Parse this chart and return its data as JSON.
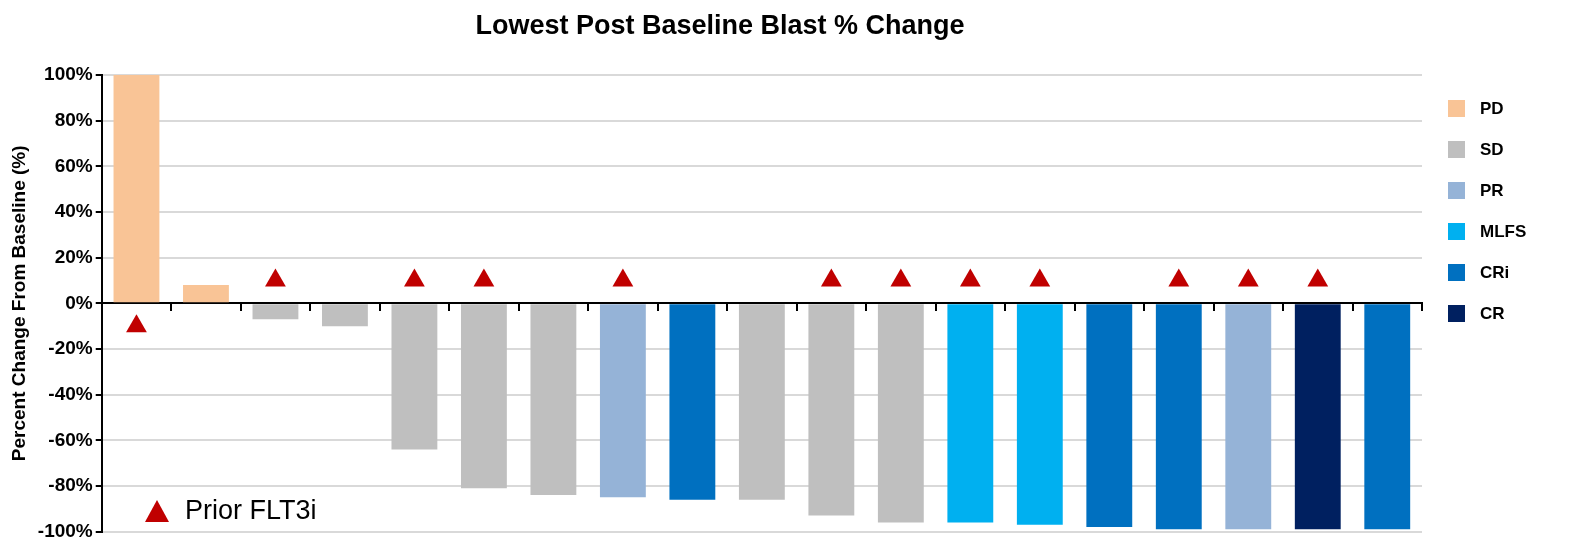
{
  "chart_data": {
    "type": "bar",
    "title": "Lowest Post Baseline Blast % Change",
    "ylabel": "Percent Change From Baseline (%)",
    "categories": [
      null,
      null,
      null,
      null,
      null,
      null,
      null,
      null,
      null,
      null,
      null,
      null,
      null,
      null,
      null,
      null,
      null,
      null,
      null
    ],
    "stacked": true,
    "grid": "y",
    "legend": "right",
    "marker": "triangle",
    "ylim": [
      -100,
      100
    ],
    "yticks": [
      {
        "value": -100,
        "label": "-100%"
      },
      {
        "value": -80,
        "label": "-80%"
      },
      {
        "value": -60,
        "label": "-60%"
      },
      {
        "value": -40,
        "label": "-40%"
      },
      {
        "value": -20,
        "label": "-20%"
      },
      {
        "value": 0,
        "label": "0%"
      },
      {
        "value": 20,
        "label": "20%"
      },
      {
        "value": 40,
        "label": "40%"
      },
      {
        "value": 60,
        "label": "60%"
      },
      {
        "value": 80,
        "label": "80%"
      },
      {
        "value": 100,
        "label": "100%"
      }
    ],
    "series": [
      {
        "name": "PD",
        "color": "#f9c496",
        "values": [
          100,
          8,
          null,
          null,
          null,
          null,
          null,
          null,
          null,
          null,
          null,
          null,
          null,
          null,
          null,
          null,
          null,
          null,
          null
        ]
      },
      {
        "name": "SD",
        "color": "#bfbfbf",
        "values": [
          null,
          null,
          -7,
          -10,
          -64,
          -81,
          -84,
          null,
          null,
          -86,
          -93,
          -96,
          null,
          null,
          null,
          null,
          null,
          null,
          null
        ]
      },
      {
        "name": "PR",
        "color": "#95b3d7",
        "values": [
          null,
          null,
          null,
          null,
          null,
          null,
          null,
          -85,
          null,
          null,
          null,
          null,
          null,
          null,
          null,
          null,
          -99,
          null,
          null
        ]
      },
      {
        "name": "MLFS",
        "color": "#00b0f0",
        "values": [
          null,
          null,
          null,
          null,
          null,
          null,
          null,
          null,
          null,
          null,
          null,
          null,
          -96,
          -97,
          null,
          null,
          null,
          null,
          null
        ]
      },
      {
        "name": "CRi",
        "color": "#0070c0",
        "values": [
          null,
          null,
          null,
          null,
          null,
          null,
          null,
          null,
          -86,
          null,
          null,
          null,
          null,
          null,
          -98,
          -99,
          null,
          null,
          -99
        ]
      },
      {
        "name": "CR",
        "color": "#002060",
        "values": [
          null,
          null,
          null,
          null,
          null,
          null,
          null,
          null,
          null,
          null,
          null,
          null,
          null,
          null,
          null,
          null,
          null,
          -99,
          null
        ]
      },
      {
        "name": "Prior FLT3i",
        "type": "scatter",
        "color": "#c00000",
        "values": [
          -10,
          null,
          10,
          null,
          10,
          10,
          null,
          10,
          null,
          null,
          10,
          10,
          10,
          10,
          null,
          10,
          10,
          10,
          null
        ]
      }
    ]
  }
}
